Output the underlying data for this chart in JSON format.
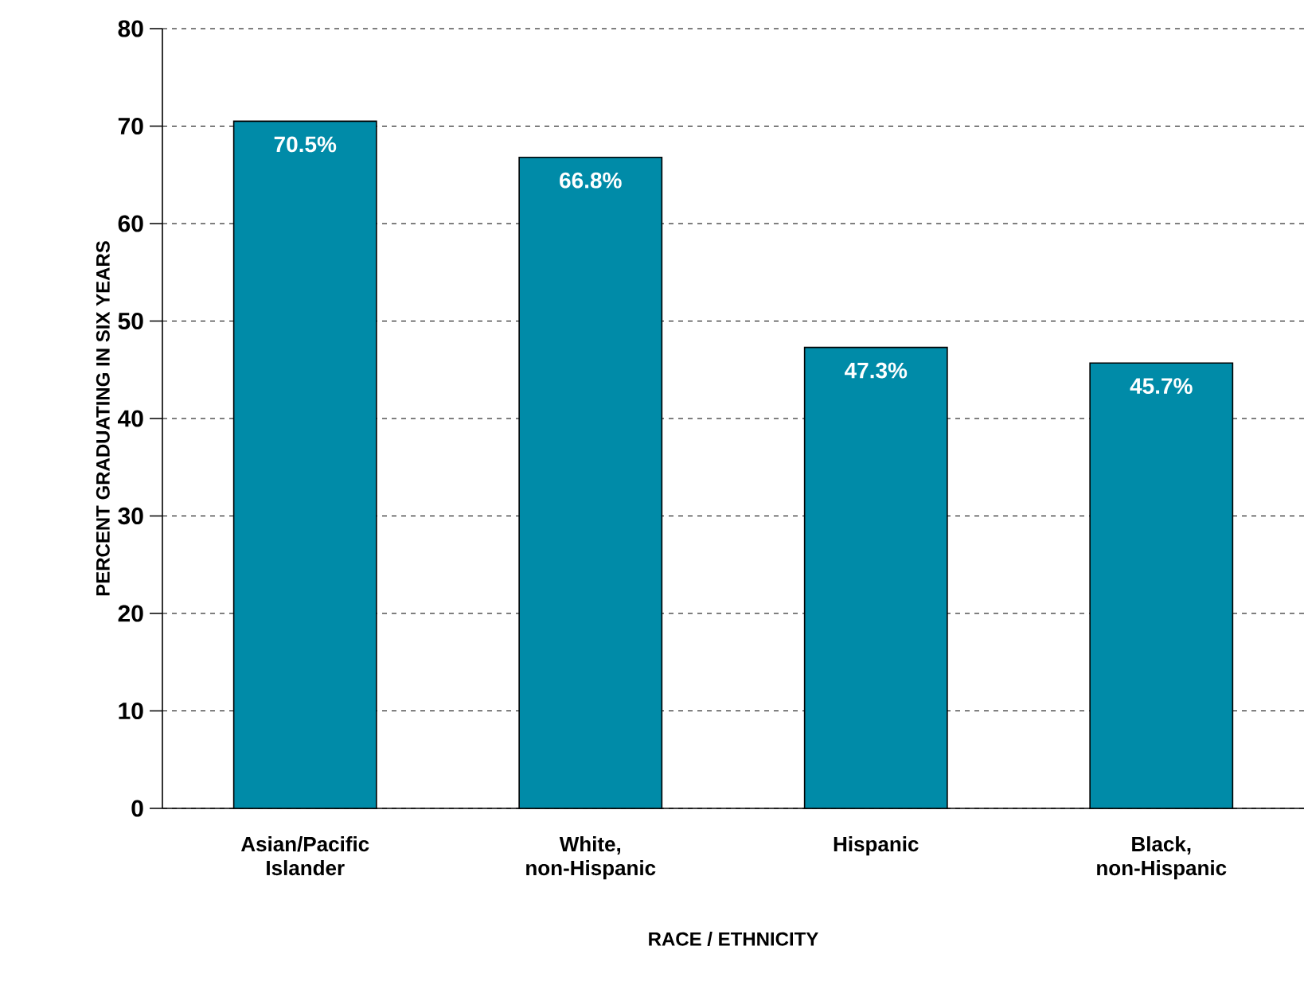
{
  "chart_data": {
    "type": "bar",
    "xlabel": "RACE / ETHNICITY",
    "ylabel": "PERCENT GRADUATING IN SIX YEARS",
    "categories": [
      "Asian/Pacific Islander",
      "White, non-Hispanic",
      "Hispanic",
      "Black, non-Hispanic"
    ],
    "values": [
      70.5,
      66.8,
      47.3,
      45.7
    ],
    "value_labels": [
      "70.5%",
      "66.8%",
      "47.3%",
      "45.7%"
    ],
    "color": "#008ba8",
    "ylim": [
      0,
      80
    ],
    "yticks": [
      0,
      10,
      20,
      30,
      40,
      50,
      60,
      70,
      80
    ],
    "grid": "y"
  }
}
